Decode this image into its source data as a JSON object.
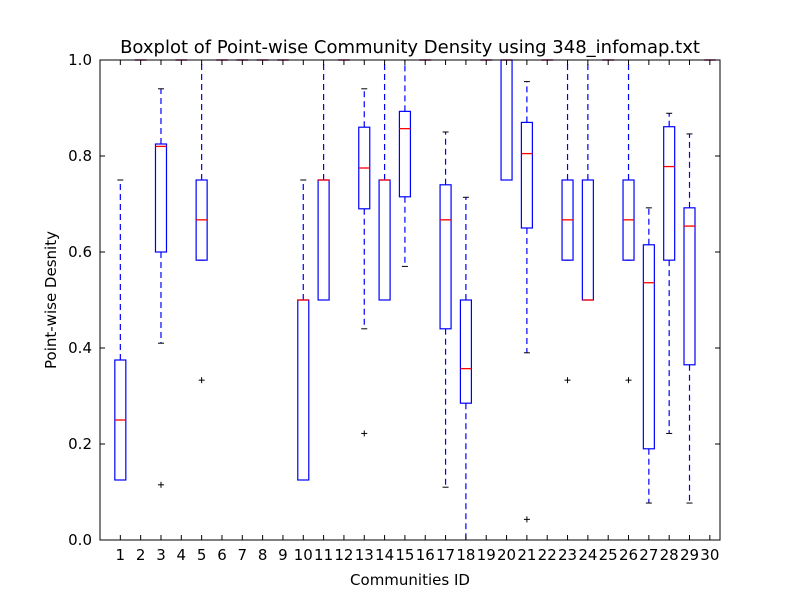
{
  "chart_data": {
    "type": "boxplot",
    "title": "Boxplot of Point-wise Community Density using 348_infomap.txt",
    "xlabel": "Communities ID",
    "ylabel": "Point-wise Desnity",
    "ylim": [
      0,
      1
    ],
    "yticks": [
      "0.0",
      "0.2",
      "0.4",
      "0.6",
      "0.8",
      "1.0"
    ],
    "categories": [
      "1",
      "2",
      "3",
      "4",
      "5",
      "6",
      "7",
      "8",
      "9",
      "10",
      "11",
      "12",
      "13",
      "14",
      "15",
      "16",
      "17",
      "18",
      "19",
      "20",
      "21",
      "22",
      "23",
      "24",
      "25",
      "26",
      "27",
      "28",
      "29",
      "30"
    ],
    "grid": false,
    "colors": {
      "box": "#0000ff",
      "median": "#ff0000",
      "flier": "#000000"
    },
    "boxes": [
      {
        "id": "1",
        "whislo": 0.125,
        "q1": 0.125,
        "med": 0.25,
        "q3": 0.375,
        "whishi": 0.75,
        "fliers": []
      },
      {
        "id": "2",
        "whislo": 1.0,
        "q1": 1.0,
        "med": 1.0,
        "q3": 1.0,
        "whishi": 1.0,
        "fliers": []
      },
      {
        "id": "3",
        "whislo": 0.41,
        "q1": 0.6,
        "med": 0.82,
        "q3": 0.825,
        "whishi": 0.94,
        "fliers": [
          0.115
        ]
      },
      {
        "id": "4",
        "whislo": 1.0,
        "q1": 1.0,
        "med": 1.0,
        "q3": 1.0,
        "whishi": 1.0,
        "fliers": []
      },
      {
        "id": "5",
        "whislo": 0.583,
        "q1": 0.583,
        "med": 0.667,
        "q3": 0.75,
        "whishi": 1.0,
        "fliers": [
          0.333
        ]
      },
      {
        "id": "6",
        "whislo": 1.0,
        "q1": 1.0,
        "med": 1.0,
        "q3": 1.0,
        "whishi": 1.0,
        "fliers": []
      },
      {
        "id": "7",
        "whislo": 1.0,
        "q1": 1.0,
        "med": 1.0,
        "q3": 1.0,
        "whishi": 1.0,
        "fliers": []
      },
      {
        "id": "8",
        "whislo": 1.0,
        "q1": 1.0,
        "med": 1.0,
        "q3": 1.0,
        "whishi": 1.0,
        "fliers": []
      },
      {
        "id": "9",
        "whislo": 1.0,
        "q1": 1.0,
        "med": 1.0,
        "q3": 1.0,
        "whishi": 1.0,
        "fliers": []
      },
      {
        "id": "10",
        "whislo": 0.125,
        "q1": 0.125,
        "med": 0.5,
        "q3": 0.5,
        "whishi": 0.75,
        "fliers": []
      },
      {
        "id": "11",
        "whislo": 0.5,
        "q1": 0.5,
        "med": 0.75,
        "q3": 0.75,
        "whishi": 1.0,
        "fliers": []
      },
      {
        "id": "12",
        "whislo": 1.0,
        "q1": 1.0,
        "med": 1.0,
        "q3": 1.0,
        "whishi": 1.0,
        "fliers": []
      },
      {
        "id": "13",
        "whislo": 0.44,
        "q1": 0.69,
        "med": 0.775,
        "q3": 0.86,
        "whishi": 0.94,
        "fliers": [
          0.222
        ]
      },
      {
        "id": "14",
        "whislo": 0.5,
        "q1": 0.5,
        "med": 0.75,
        "q3": 0.75,
        "whishi": 1.0,
        "fliers": []
      },
      {
        "id": "15",
        "whislo": 0.57,
        "q1": 0.715,
        "med": 0.857,
        "q3": 0.893,
        "whishi": 1.0,
        "fliers": []
      },
      {
        "id": "16",
        "whislo": 1.0,
        "q1": 1.0,
        "med": 1.0,
        "q3": 1.0,
        "whishi": 1.0,
        "fliers": []
      },
      {
        "id": "17",
        "whislo": 0.11,
        "q1": 0.44,
        "med": 0.667,
        "q3": 0.74,
        "whishi": 0.85,
        "fliers": []
      },
      {
        "id": "18",
        "whislo": 0.0,
        "q1": 0.285,
        "med": 0.357,
        "q3": 0.5,
        "whishi": 0.714,
        "fliers": []
      },
      {
        "id": "19",
        "whislo": 1.0,
        "q1": 1.0,
        "med": 1.0,
        "q3": 1.0,
        "whishi": 1.0,
        "fliers": []
      },
      {
        "id": "20",
        "whislo": 0.75,
        "q1": 0.75,
        "med": 1.0,
        "q3": 1.0,
        "whishi": 1.0,
        "fliers": []
      },
      {
        "id": "21",
        "whislo": 0.39,
        "q1": 0.65,
        "med": 0.805,
        "q3": 0.87,
        "whishi": 0.955,
        "fliers": [
          0.043
        ]
      },
      {
        "id": "22",
        "whislo": 1.0,
        "q1": 1.0,
        "med": 1.0,
        "q3": 1.0,
        "whishi": 1.0,
        "fliers": []
      },
      {
        "id": "23",
        "whislo": 0.583,
        "q1": 0.583,
        "med": 0.667,
        "q3": 0.75,
        "whishi": 1.0,
        "fliers": [
          0.333
        ]
      },
      {
        "id": "24",
        "whislo": 0.5,
        "q1": 0.5,
        "med": 0.5,
        "q3": 0.75,
        "whishi": 1.0,
        "fliers": []
      },
      {
        "id": "25",
        "whislo": 1.0,
        "q1": 1.0,
        "med": 1.0,
        "q3": 1.0,
        "whishi": 1.0,
        "fliers": []
      },
      {
        "id": "26",
        "whislo": 0.583,
        "q1": 0.583,
        "med": 0.667,
        "q3": 0.75,
        "whishi": 1.0,
        "fliers": [
          0.333
        ]
      },
      {
        "id": "27",
        "whislo": 0.077,
        "q1": 0.19,
        "med": 0.536,
        "q3": 0.615,
        "whishi": 0.692,
        "fliers": []
      },
      {
        "id": "28",
        "whislo": 0.222,
        "q1": 0.583,
        "med": 0.778,
        "q3": 0.861,
        "whishi": 0.889,
        "fliers": []
      },
      {
        "id": "29",
        "whislo": 0.077,
        "q1": 0.365,
        "med": 0.654,
        "q3": 0.692,
        "whishi": 0.846,
        "fliers": []
      },
      {
        "id": "30",
        "whislo": 1.0,
        "q1": 1.0,
        "med": 1.0,
        "q3": 1.0,
        "whishi": 1.0,
        "fliers": []
      }
    ]
  }
}
